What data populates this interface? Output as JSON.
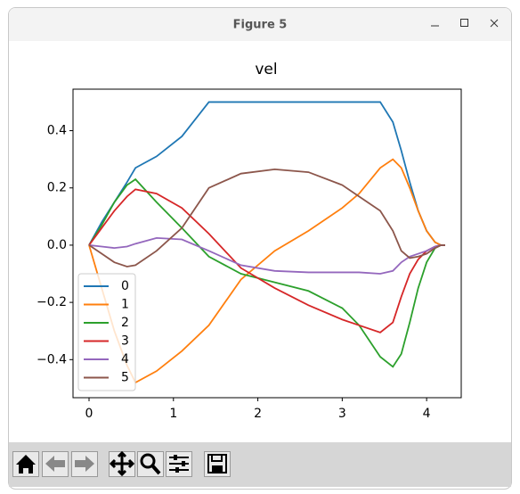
{
  "window_title": "Figure 5",
  "chart_data": {
    "type": "line",
    "title": "vel",
    "x": [
      0,
      0.15,
      0.3,
      0.45,
      0.55,
      0.8,
      1.1,
      1.42,
      1.8,
      2.2,
      2.6,
      3.0,
      3.2,
      3.45,
      3.6,
      3.7,
      3.8,
      3.9,
      4.0,
      4.1,
      4.17,
      4.22
    ],
    "series": [
      {
        "name": "0",
        "color": "#1f77b4",
        "values": [
          0,
          0.08,
          0.15,
          0.22,
          0.27,
          0.31,
          0.38,
          0.5,
          0.5,
          0.5,
          0.5,
          0.5,
          0.5,
          0.5,
          0.43,
          0.33,
          0.22,
          0.12,
          0.05,
          0.01,
          0,
          0
        ]
      },
      {
        "name": "1",
        "color": "#ff7f0e",
        "values": [
          0,
          -0.15,
          -0.3,
          -0.42,
          -0.48,
          -0.44,
          -0.37,
          -0.28,
          -0.12,
          -0.02,
          0.05,
          0.13,
          0.18,
          0.27,
          0.3,
          0.27,
          0.2,
          0.12,
          0.05,
          0.01,
          0,
          0
        ]
      },
      {
        "name": "2",
        "color": "#2ca02c",
        "values": [
          0,
          0.07,
          0.15,
          0.21,
          0.23,
          0.15,
          0.06,
          -0.04,
          -0.1,
          -0.13,
          -0.16,
          -0.22,
          -0.28,
          -0.39,
          -0.425,
          -0.38,
          -0.27,
          -0.15,
          -0.06,
          -0.01,
          0,
          0
        ]
      },
      {
        "name": "3",
        "color": "#d62728",
        "values": [
          0,
          0.06,
          0.12,
          0.17,
          0.195,
          0.18,
          0.13,
          0.04,
          -0.08,
          -0.15,
          -0.21,
          -0.26,
          -0.28,
          -0.305,
          -0.27,
          -0.18,
          -0.1,
          -0.05,
          -0.02,
          -0.005,
          0,
          0
        ]
      },
      {
        "name": "4",
        "color": "#9467bd",
        "values": [
          0,
          -0.005,
          -0.01,
          -0.005,
          0.005,
          0.025,
          0.02,
          -0.02,
          -0.07,
          -0.09,
          -0.095,
          -0.095,
          -0.095,
          -0.1,
          -0.09,
          -0.06,
          -0.04,
          -0.03,
          -0.02,
          -0.005,
          0,
          0
        ]
      },
      {
        "name": "5",
        "color": "#8c564b",
        "values": [
          0,
          -0.03,
          -0.06,
          -0.075,
          -0.07,
          -0.02,
          0.06,
          0.2,
          0.25,
          0.265,
          0.255,
          0.21,
          0.17,
          0.12,
          0.05,
          -0.02,
          -0.045,
          -0.04,
          -0.03,
          -0.01,
          0,
          0
        ]
      }
    ],
    "xlim": [
      -0.19,
      4.41
    ],
    "xticks": [
      0,
      1,
      2,
      3,
      4
    ],
    "ylim": [
      -0.533,
      0.545
    ],
    "yticks": [
      {
        "value": -0.4,
        "label": "−0.4"
      },
      {
        "value": -0.2,
        "label": "−0.2"
      },
      {
        "value": 0,
        "label": "0.0"
      },
      0.2,
      0.4
    ],
    "legend": "lower left"
  }
}
